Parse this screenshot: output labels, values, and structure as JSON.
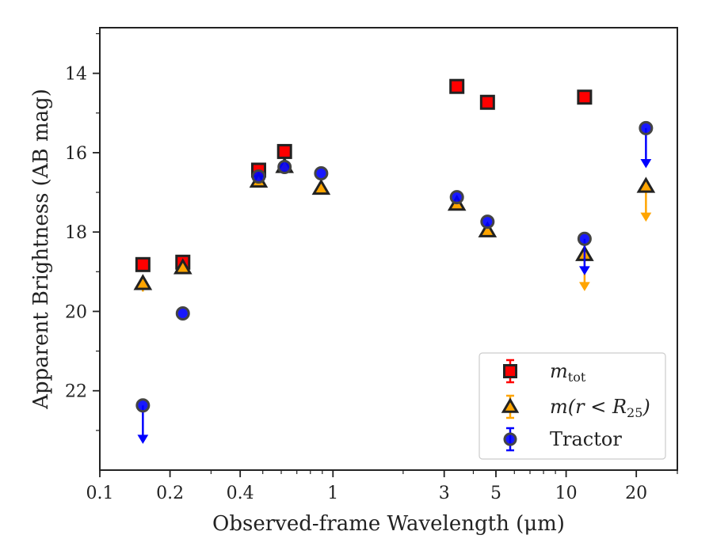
{
  "chart_data": {
    "type": "scatter",
    "title": "",
    "xlabel": "Observed-frame Wavelength (μm)",
    "ylabel": "Apparent Brightness (AB mag)",
    "xscale": "log",
    "xlim": [
      0.1,
      30
    ],
    "ylim": [
      24.0,
      12.85
    ],
    "y_inverted": true,
    "grid": false,
    "legend_position": "lower-right",
    "x_ticks": [
      {
        "value": 0.1,
        "label": "0.1"
      },
      {
        "value": 0.2,
        "label": "0.2"
      },
      {
        "value": 0.4,
        "label": "0.4"
      },
      {
        "value": 1,
        "label": "1"
      },
      {
        "value": 3,
        "label": "3"
      },
      {
        "value": 5,
        "label": "5"
      },
      {
        "value": 10,
        "label": "10"
      },
      {
        "value": 20,
        "label": "20"
      }
    ],
    "y_ticks": [
      {
        "value": 14,
        "label": "14"
      },
      {
        "value": 16,
        "label": "16"
      },
      {
        "value": 18,
        "label": "18"
      },
      {
        "value": 20,
        "label": "20"
      },
      {
        "value": 22,
        "label": "22"
      }
    ],
    "series": [
      {
        "name": "m_tot",
        "legend_main": "m",
        "legend_sub": "tot",
        "marker": "square",
        "color": "#ff0000",
        "edge_color": "#222222",
        "points": [
          {
            "x": 0.153,
            "y": 18.82
          },
          {
            "x": 0.227,
            "y": 18.76
          },
          {
            "x": 0.48,
            "y": 16.44
          },
          {
            "x": 0.62,
            "y": 15.97
          },
          {
            "x": 3.4,
            "y": 14.33
          },
          {
            "x": 4.6,
            "y": 14.73
          },
          {
            "x": 12.0,
            "y": 14.6
          }
        ]
      },
      {
        "name": "m(r<R25)",
        "legend_main": "m(r < R",
        "legend_sub": "25",
        "legend_suffix": ")",
        "marker": "triangle",
        "color": "#ffa500",
        "edge_color": "#222222",
        "points": [
          {
            "x": 0.153,
            "y": 19.3,
            "yerr": 0.2
          },
          {
            "x": 0.227,
            "y": 18.9
          },
          {
            "x": 0.48,
            "y": 16.72
          },
          {
            "x": 0.62,
            "y": 16.35
          },
          {
            "x": 0.89,
            "y": 16.9
          },
          {
            "x": 3.4,
            "y": 17.3
          },
          {
            "x": 4.6,
            "y": 17.97
          },
          {
            "x": 12.0,
            "y": 18.57,
            "upper_limit": true,
            "arrow_to": 19.45
          },
          {
            "x": 22.0,
            "y": 16.85,
            "upper_limit": true,
            "arrow_to": 17.7
          }
        ]
      },
      {
        "name": "Tractor",
        "legend_main": "Tractor",
        "marker": "circle",
        "color": "#0000ff",
        "edge_color": "#444444",
        "points": [
          {
            "x": 0.153,
            "y": 22.37,
            "upper_limit": true,
            "arrow_to": 23.3
          },
          {
            "x": 0.227,
            "y": 20.05
          },
          {
            "x": 0.48,
            "y": 16.6
          },
          {
            "x": 0.62,
            "y": 16.36
          },
          {
            "x": 0.89,
            "y": 16.52
          },
          {
            "x": 3.4,
            "y": 17.12
          },
          {
            "x": 4.6,
            "y": 17.74
          },
          {
            "x": 12.0,
            "y": 18.17,
            "upper_limit": true,
            "arrow_to": 19.05
          },
          {
            "x": 22.0,
            "y": 15.38,
            "upper_limit": true,
            "arrow_to": 16.35
          }
        ]
      }
    ]
  }
}
